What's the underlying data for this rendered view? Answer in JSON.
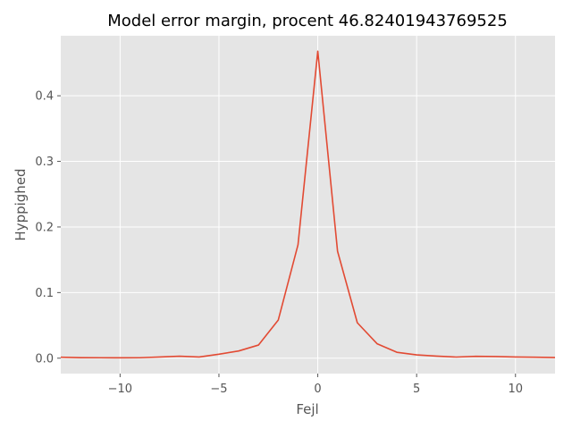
{
  "chart_data": {
    "type": "line",
    "title": "Model error margin, procent 46.82401943769525",
    "xlabel": "Fejl",
    "ylabel": "Hyppighed",
    "xlim": [
      -13,
      12
    ],
    "ylim": [
      -0.0235,
      0.4915
    ],
    "xticks": [
      -10,
      -5,
      0,
      5,
      10
    ],
    "xtick_labels": [
      "−10",
      "−5",
      "0",
      "5",
      "10"
    ],
    "yticks": [
      0.0,
      0.1,
      0.2,
      0.3,
      0.4
    ],
    "ytick_labels": [
      "0.0",
      "0.1",
      "0.2",
      "0.3",
      "0.4"
    ],
    "grid": true,
    "background": "#e5e5e5",
    "grid_color": "#ffffff",
    "series": [
      {
        "color": "#e24a33",
        "x": [
          -13,
          -12,
          -11,
          -10,
          -9,
          -8,
          -7,
          -6,
          -5,
          -4,
          -3,
          -2,
          -1,
          0,
          1,
          2,
          3,
          4,
          5,
          6,
          7,
          8,
          9,
          10,
          11,
          12
        ],
        "y": [
          0.0015,
          0.0008,
          0.0007,
          0.0006,
          0.0007,
          0.0018,
          0.003,
          0.0018,
          0.006,
          0.011,
          0.02,
          0.058,
          0.173,
          0.468,
          0.163,
          0.054,
          0.022,
          0.009,
          0.005,
          0.0032,
          0.0017,
          0.0028,
          0.0025,
          0.0018,
          0.0014,
          0.001
        ]
      }
    ]
  }
}
